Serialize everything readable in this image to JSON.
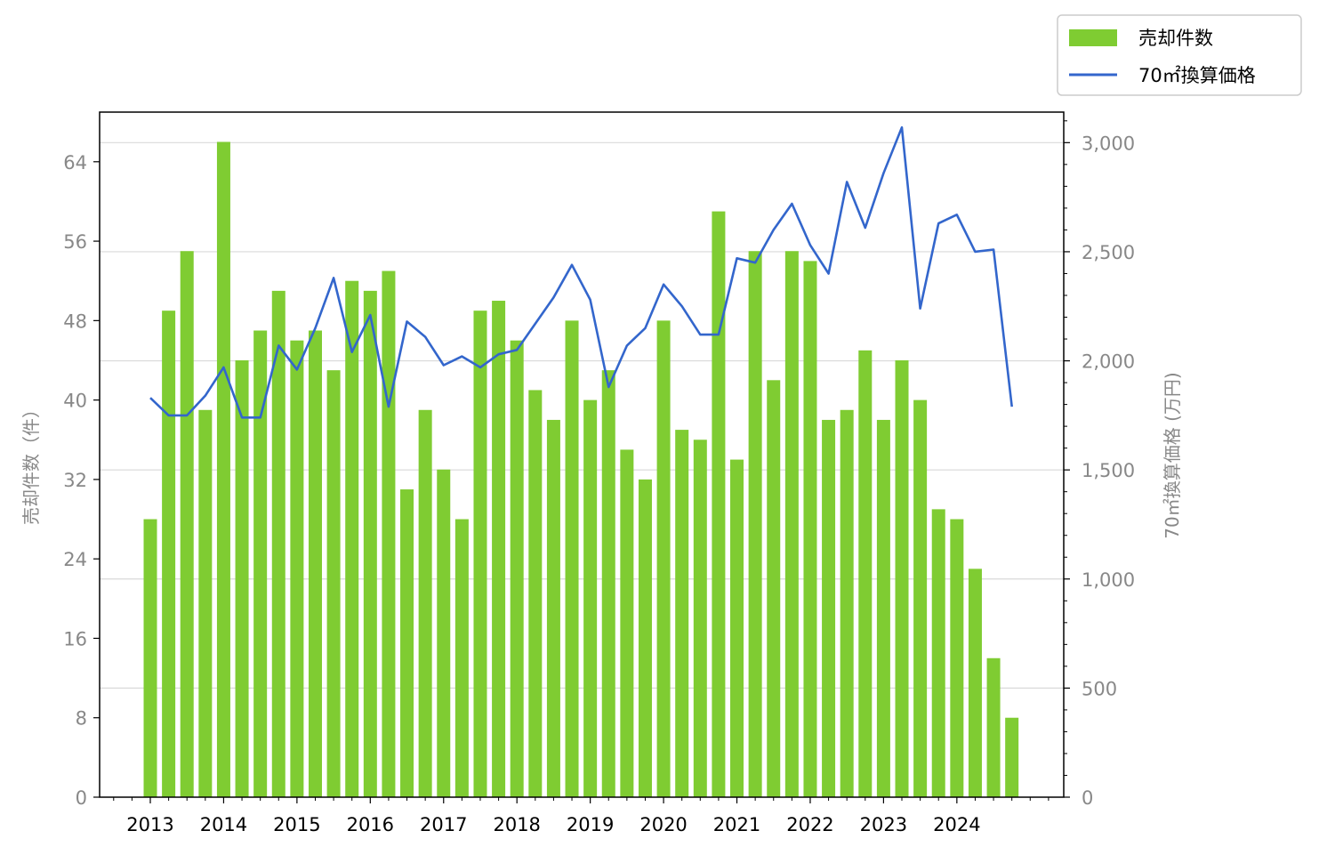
{
  "chart_data": {
    "type": "bar+line",
    "x": [
      "2013 Q1",
      "2013 Q2",
      "2013 Q3",
      "2013 Q4",
      "2014 Q1",
      "2014 Q2",
      "2014 Q3",
      "2014 Q4",
      "2015 Q1",
      "2015 Q2",
      "2015 Q3",
      "2015 Q4",
      "2016 Q1",
      "2016 Q2",
      "2016 Q3",
      "2016 Q4",
      "2017 Q1",
      "2017 Q2",
      "2017 Q3",
      "2017 Q4",
      "2018 Q1",
      "2018 Q2",
      "2018 Q3",
      "2018 Q4",
      "2019 Q1",
      "2019 Q2",
      "2019 Q3",
      "2019 Q4",
      "2020 Q1",
      "2020 Q2",
      "2020 Q3",
      "2020 Q4",
      "2021 Q1",
      "2021 Q2",
      "2021 Q3",
      "2021 Q4",
      "2022 Q1",
      "2022 Q2",
      "2022 Q3",
      "2022 Q4",
      "2023 Q1",
      "2023 Q2",
      "2023 Q3",
      "2023 Q4",
      "2024 Q1",
      "2024 Q2",
      "2024 Q3",
      "2024 Q4"
    ],
    "x_tick_labels": [
      "2013",
      "2014",
      "2015",
      "2016",
      "2017",
      "2018",
      "2019",
      "2020",
      "2021",
      "2022",
      "2023",
      "2024"
    ],
    "series": [
      {
        "name": "売却件数",
        "kind": "bar",
        "axis": "left",
        "color": "#7fcc32",
        "values": [
          28,
          49,
          55,
          39,
          66,
          44,
          47,
          51,
          46,
          47,
          43,
          52,
          51,
          53,
          31,
          39,
          33,
          28,
          49,
          50,
          46,
          41,
          38,
          48,
          40,
          43,
          35,
          32,
          48,
          37,
          36,
          59,
          34,
          55,
          42,
          55,
          54,
          38,
          39,
          45,
          38,
          44,
          40,
          29,
          28,
          23,
          14,
          8
        ]
      },
      {
        "name": "70㎡換算価格",
        "kind": "line",
        "axis": "right",
        "color": "#3366cc",
        "values": [
          1830,
          1750,
          1750,
          1840,
          1970,
          1740,
          1740,
          2070,
          1960,
          2150,
          2380,
          2040,
          2210,
          1790,
          2180,
          2110,
          1980,
          2020,
          1970,
          2030,
          2050,
          2170,
          2290,
          2440,
          2280,
          1880,
          2070,
          2150,
          2350,
          2250,
          2120,
          2120,
          2470,
          2450,
          2600,
          2720,
          2530,
          2400,
          2820,
          2610,
          2860,
          3070,
          2240,
          2630,
          2670,
          2500,
          2510,
          1790
        ]
      }
    ],
    "left_axis": {
      "label": "売却件数（件）",
      "ylim": [
        0,
        69
      ],
      "ticks": [
        0,
        8,
        16,
        24,
        32,
        40,
        48,
        56,
        64
      ],
      "tick_labels": [
        "0",
        "8",
        "16",
        "24",
        "32",
        "40",
        "48",
        "56",
        "64"
      ]
    },
    "right_axis": {
      "label": "70㎡換算価格 (万円)",
      "ylim": [
        0,
        3140
      ],
      "ticks": [
        0,
        500,
        1000,
        1500,
        2000,
        2500,
        3000
      ],
      "tick_labels": [
        "0",
        "500",
        "1,000",
        "1,500",
        "2,000",
        "2,500",
        "3,000"
      ]
    },
    "grid": true,
    "grid_axis": "right",
    "legend_position": "top-right, outside plot"
  }
}
